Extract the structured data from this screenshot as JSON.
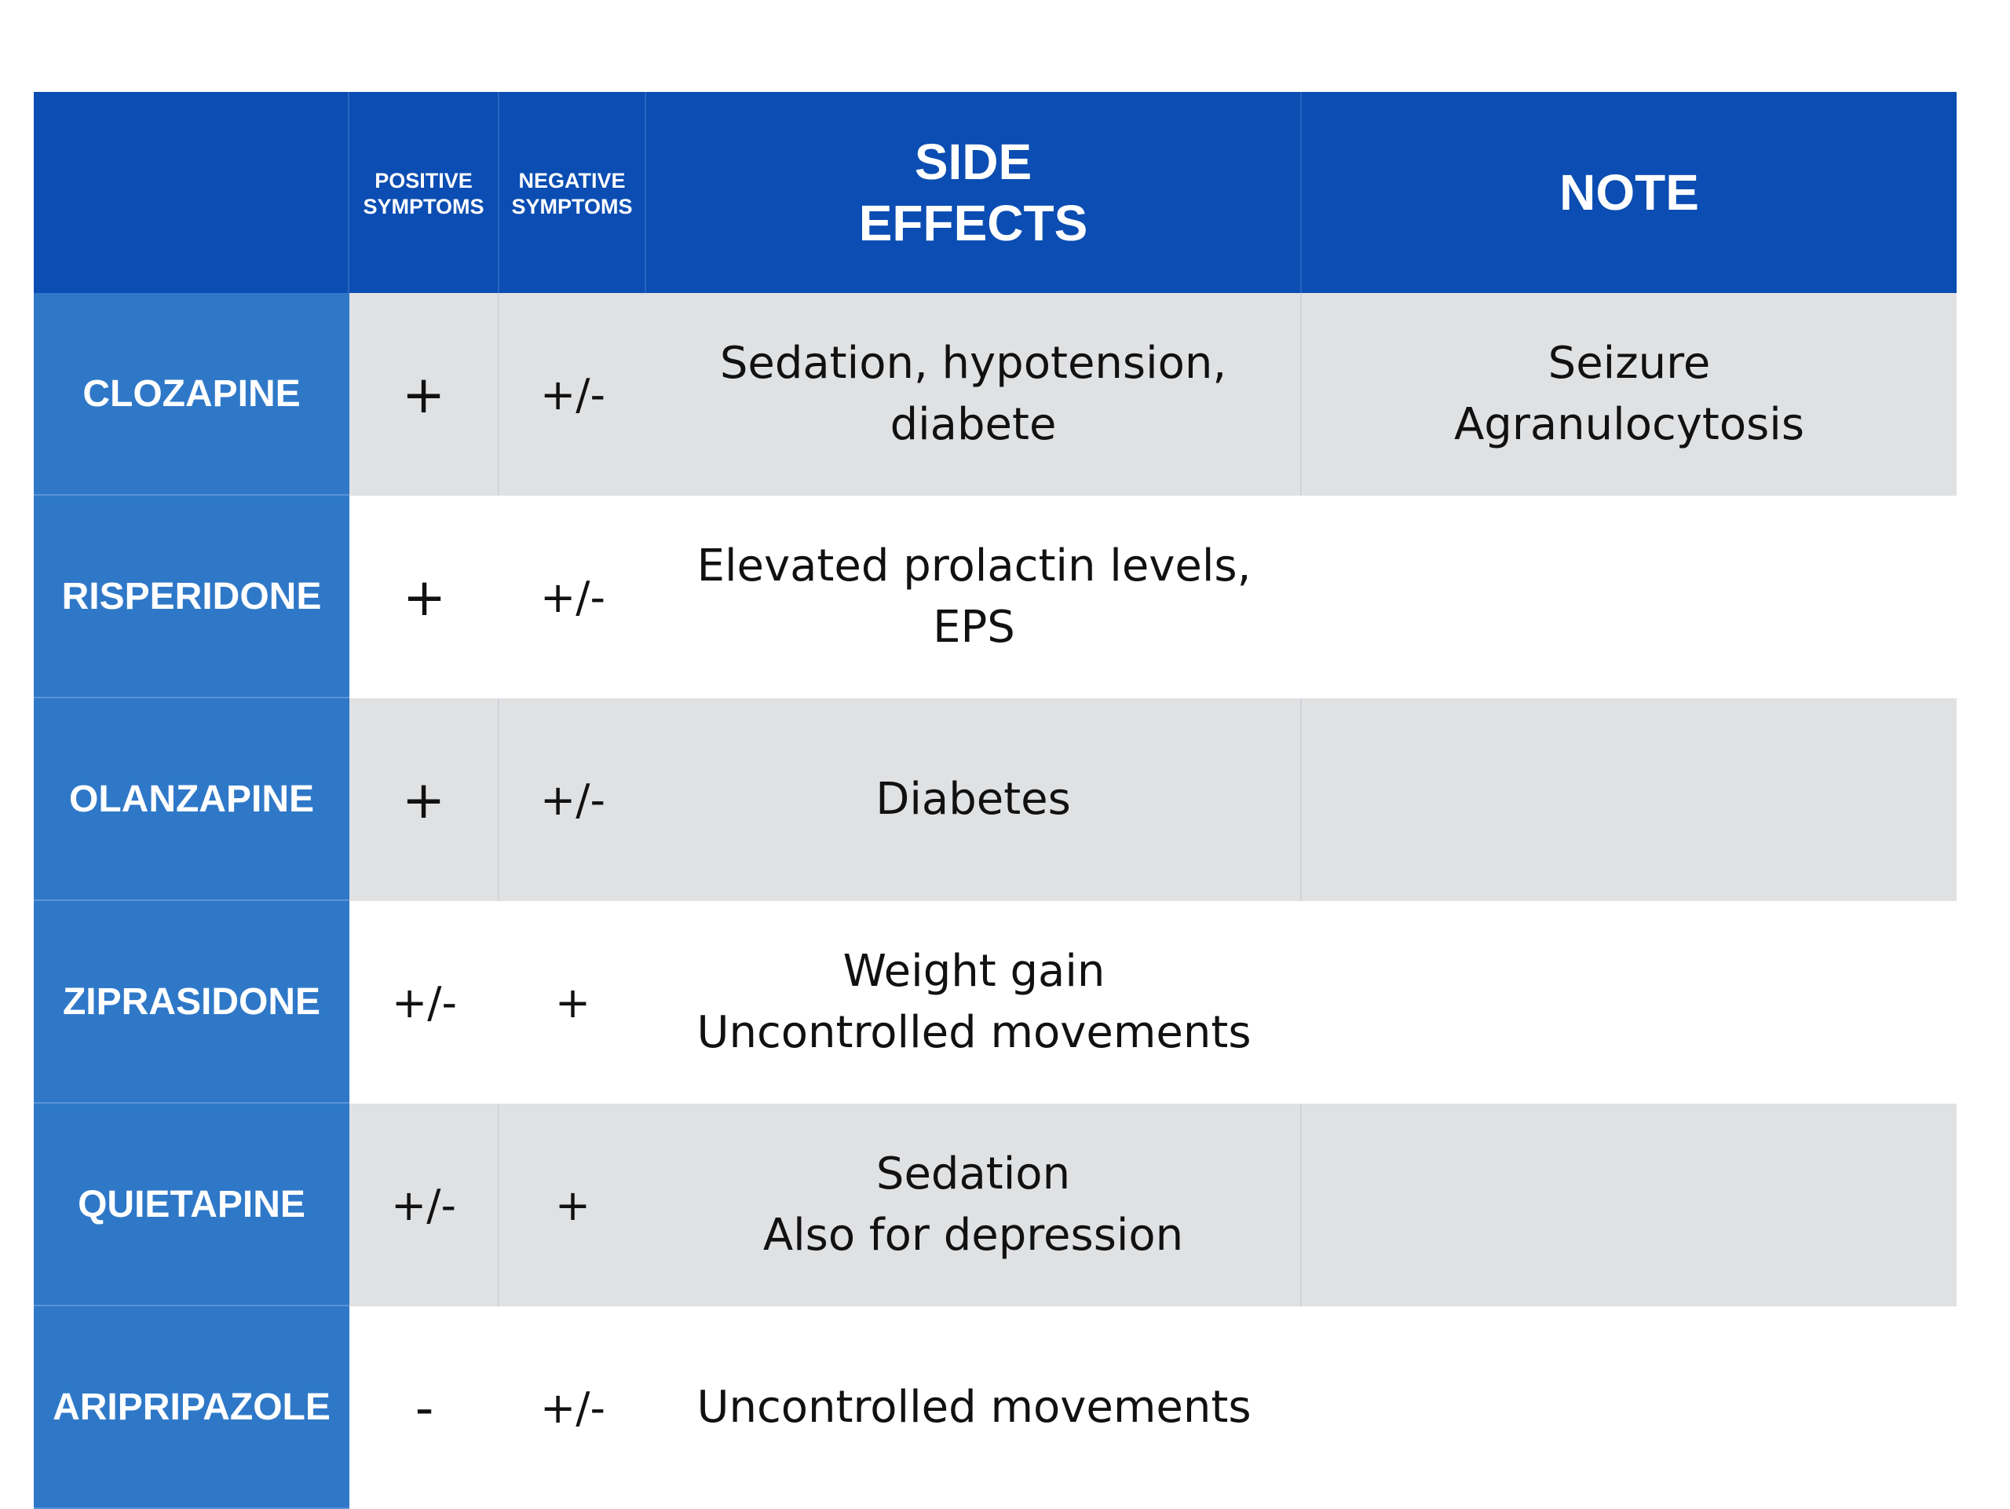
{
  "header": {
    "positive": [
      "POSITIVE",
      "SYMPTOMS"
    ],
    "negative": [
      "NEGATIVE",
      "SYMPTOMS"
    ],
    "side_effects": [
      "SIDE",
      "EFFECTS"
    ],
    "note": "NOTE"
  },
  "rows": [
    {
      "drug": "CLOZAPINE",
      "positive": "+",
      "negative": "+/-",
      "side_effects": [
        "Sedation, hypotension,",
        "diabete"
      ],
      "note": [
        "Seizure",
        "Agranulocytosis"
      ]
    },
    {
      "drug": "RISPERIDONE",
      "positive": "+",
      "negative": "+/-",
      "side_effects": [
        "Elevated prolactin levels,",
        "EPS"
      ],
      "note": []
    },
    {
      "drug": "OLANZAPINE",
      "positive": "+",
      "negative": "+/-",
      "side_effects": [
        "Diabetes"
      ],
      "note": []
    },
    {
      "drug": "ZIPRASIDONE",
      "positive": "+/-",
      "negative": "+",
      "side_effects": [
        "Weight gain",
        "Uncontrolled movements"
      ],
      "note": []
    },
    {
      "drug": "QUIETAPINE",
      "positive": "+/-",
      "negative": "+",
      "side_effects": [
        "Sedation",
        "Also for depression"
      ],
      "note": []
    },
    {
      "drug": "ARIPRIPAZOLE",
      "positive": "-",
      "negative": "+/-",
      "side_effects": [
        "Uncontrolled movements"
      ],
      "note": []
    }
  ]
}
